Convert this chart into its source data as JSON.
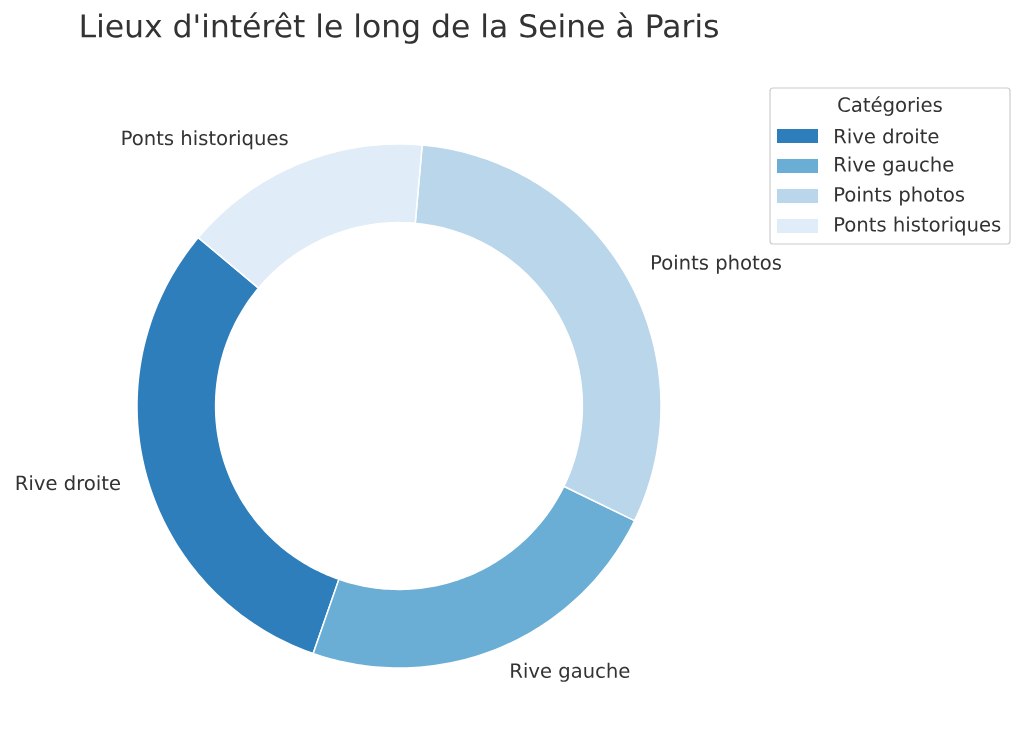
{
  "chart_data": {
    "type": "donut",
    "title": "Lieux d'intérêt le long de la Seine à Paris",
    "categories": [
      "Rive droite",
      "Rive gauche",
      "Points photos",
      "Ponts historiques"
    ],
    "values": [
      30.8,
      23.1,
      30.8,
      15.3
    ],
    "colors": [
      "#2e7ebc",
      "#6aaed6",
      "#b9d6ea",
      "#e0ecf7"
    ],
    "legend": "top right",
    "legend_title": "Catégories"
  }
}
